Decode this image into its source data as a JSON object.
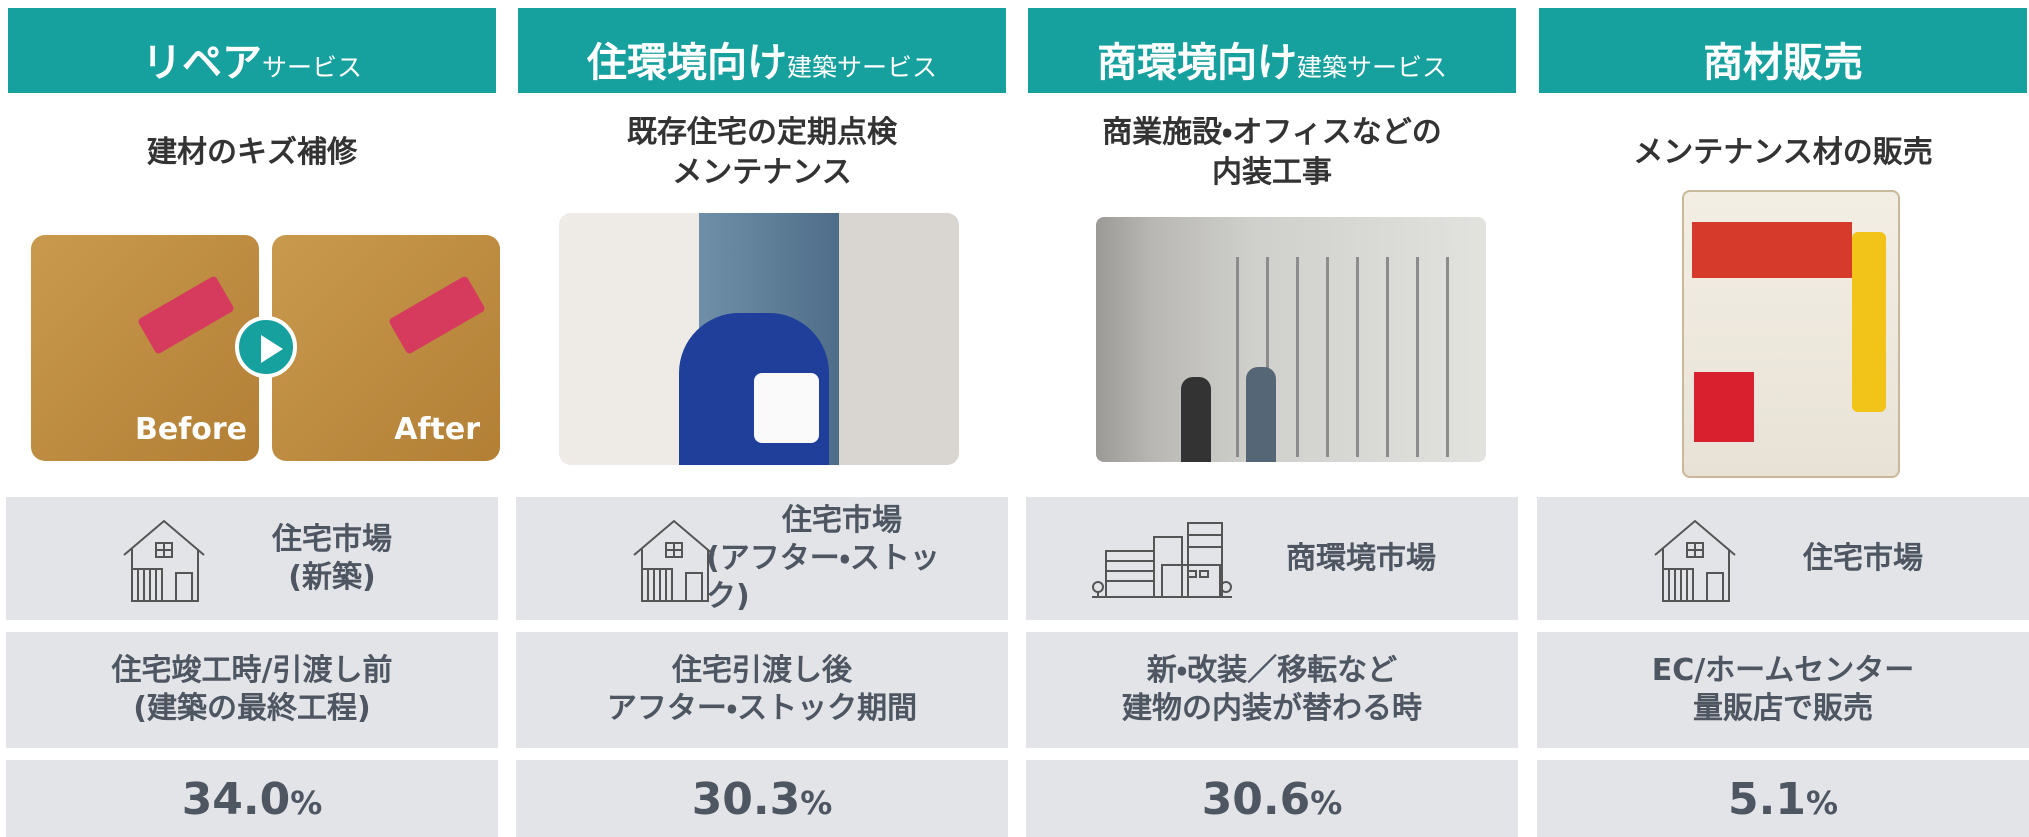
{
  "columns": [
    {
      "header": {
        "main": "リペア",
        "sub": "サービス"
      },
      "title": [
        "建材のキズ補修"
      ],
      "image_labels": [
        "Before",
        "After"
      ],
      "market": [
        "住宅市場",
        "(新築)"
      ],
      "timing": [
        "住宅竣工時/引渡し前",
        "(建築の最終工程)"
      ],
      "share": {
        "value": "34.0",
        "unit": "%"
      }
    },
    {
      "header": {
        "main": "住環境向け",
        "sub": "建築サービス"
      },
      "title": [
        "既存住宅の定期点検",
        "メンテナンス"
      ],
      "market": [
        "住宅市場",
        "(アフター・ストック)"
      ],
      "timing": [
        "住宅引渡し後",
        "アフター・ストック期間"
      ],
      "share": {
        "value": "30.3",
        "unit": "%"
      }
    },
    {
      "header": {
        "main": "商環境向け",
        "sub": "建築サービス"
      },
      "title": [
        "商業施設・オフィスなどの",
        "内装工事"
      ],
      "market": [
        "商環境市場"
      ],
      "timing": [
        "新・改装／移転など",
        "建物の内装が替わる時"
      ],
      "share": {
        "value": "30.6",
        "unit": "%"
      }
    },
    {
      "header": {
        "main": "商材販売"
      },
      "title": [
        "メンテナンス材の販売"
      ],
      "market": [
        "住宅市場"
      ],
      "timing": [
        "EC/ホームセンター",
        "量販店で販売"
      ],
      "share": {
        "value": "5.1",
        "unit": "%"
      }
    }
  ]
}
